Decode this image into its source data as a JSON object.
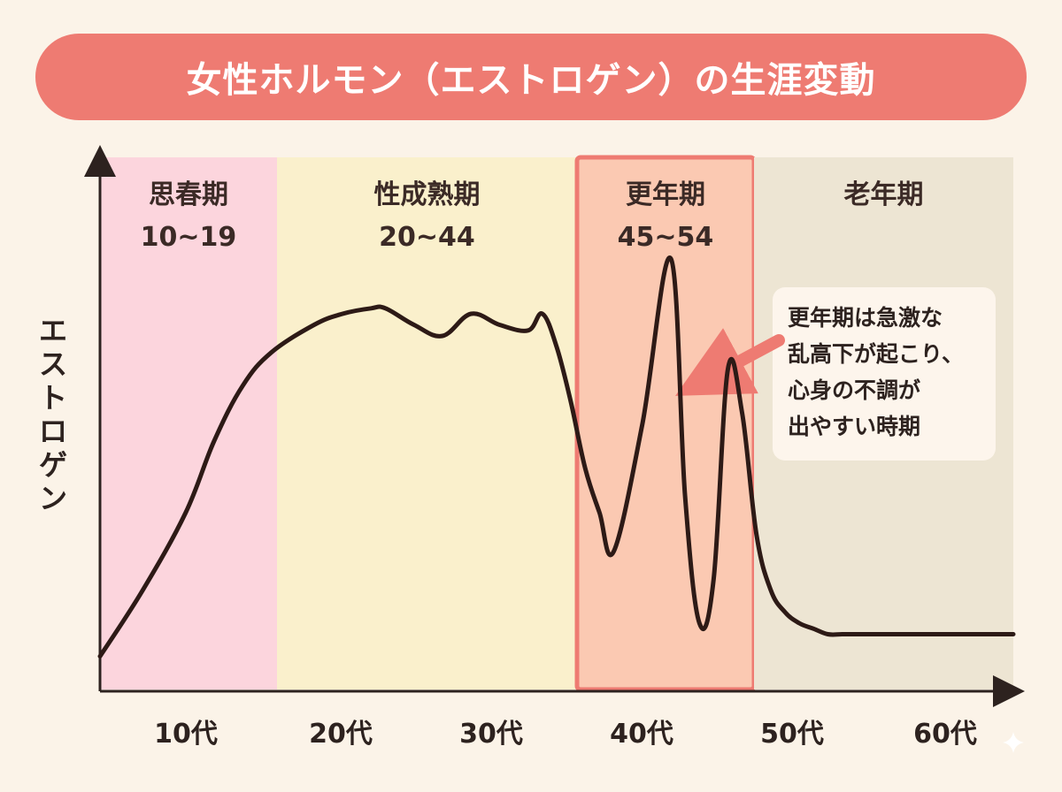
{
  "chart_data": {
    "type": "line",
    "title": "女性ホルモン（エストロゲン）の生涯変動",
    "ylabel": "エストロゲン",
    "x_ticks": [
      "10代",
      "20代",
      "30代",
      "40代",
      "50代",
      "60代"
    ],
    "bands": [
      {
        "name": "思春期",
        "range": "10~19",
        "color": "#fcd5dd"
      },
      {
        "name": "性成熟期",
        "range": "20~44",
        "color": "#faf0cc"
      },
      {
        "name": "更年期",
        "range": "45~54",
        "color": "#fbc9b2",
        "border": "#ee7b72"
      },
      {
        "name": "老年期",
        "range": "",
        "color": "#ede5d3"
      }
    ],
    "series": [
      {
        "x": [
          0,
          3,
          6,
          8,
          10,
          12,
          15,
          17,
          19,
          20,
          22,
          24,
          26,
          28,
          30,
          31,
          32,
          33,
          34,
          35,
          36,
          38,
          40,
          41,
          42,
          43,
          44,
          45,
          46,
          47,
          48,
          49,
          50,
          51,
          52,
          53,
          54,
          55,
          58,
          61,
          64
        ],
        "y": [
          0.6,
          1.8,
          3.2,
          4.5,
          5.5,
          6.1,
          6.6,
          6.8,
          6.9,
          6.9,
          6.6,
          6.4,
          6.8,
          6.6,
          6.5,
          6.8,
          6.2,
          5.2,
          4.0,
          3.2,
          2.5,
          4.8,
          7.8,
          3.5,
          1.2,
          2.0,
          5.8,
          5.0,
          2.8,
          1.8,
          1.4,
          1.2,
          1.1,
          1.0,
          1.0,
          1.0,
          1.0,
          1.0,
          1.0,
          1.0,
          1.0
        ]
      }
    ],
    "annotation": {
      "lines": [
        "更年期は急激な",
        "乱高下が起こり、",
        "心身の不調が",
        "出やすい時期"
      ]
    },
    "grid": false,
    "legend": "none"
  }
}
